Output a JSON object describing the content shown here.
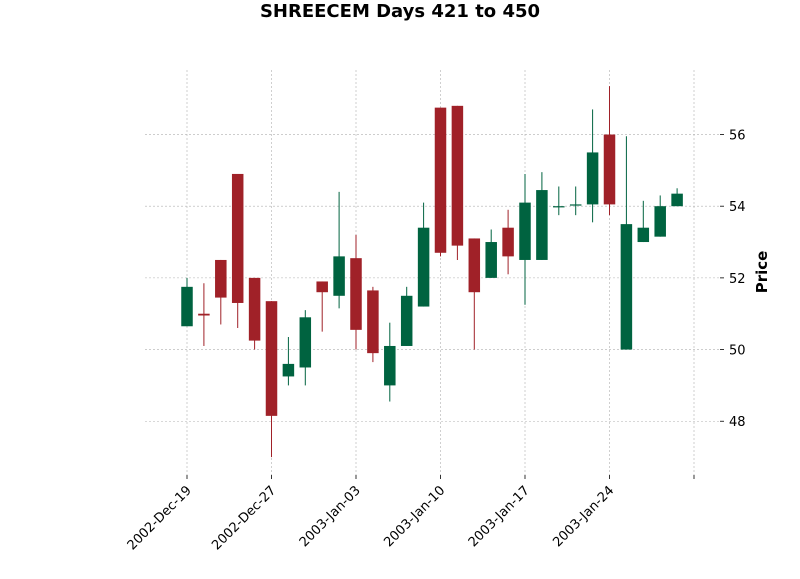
{
  "chart_data": {
    "type": "candlestick",
    "title": "SHREECEM Days 421 to 450",
    "ylabel": "Price",
    "xlabel": "",
    "ylim": [
      46.5,
      57.8
    ],
    "yticks": [
      48,
      50,
      52,
      54,
      56
    ],
    "grid": true,
    "colors": {
      "up": "#006340",
      "down": "#a02128",
      "grid": "#b0b0b0"
    },
    "xtick_labels": [
      {
        "label": "2002-Dec-19",
        "index": 0
      },
      {
        "label": "2002-Dec-27",
        "index": 5
      },
      {
        "label": "2003-Jan-03",
        "index": 10
      },
      {
        "label": "2003-Jan-10",
        "index": 15
      },
      {
        "label": "2003-Jan-17",
        "index": 20
      },
      {
        "label": "2003-Jan-24",
        "index": 25
      },
      {
        "label": "",
        "index": 30
      }
    ],
    "candles": [
      {
        "open": 50.65,
        "high": 52.0,
        "low": 50.65,
        "close": 51.75
      },
      {
        "open": 51.0,
        "high": 51.85,
        "low": 50.1,
        "close": 50.95
      },
      {
        "open": 52.5,
        "high": 52.5,
        "low": 50.7,
        "close": 51.45
      },
      {
        "open": 54.9,
        "high": 54.9,
        "low": 50.6,
        "close": 51.3
      },
      {
        "open": 52.0,
        "high": 52.0,
        "low": 50.0,
        "close": 50.25
      },
      {
        "open": 51.35,
        "high": 51.35,
        "low": 47.0,
        "close": 48.15
      },
      {
        "open": 49.25,
        "high": 50.35,
        "low": 49.0,
        "close": 49.6
      },
      {
        "open": 49.5,
        "high": 51.1,
        "low": 49.0,
        "close": 50.9
      },
      {
        "open": 51.9,
        "high": 51.9,
        "low": 50.5,
        "close": 51.6
      },
      {
        "open": 51.5,
        "high": 54.4,
        "low": 51.15,
        "close": 52.6
      },
      {
        "open": 52.55,
        "high": 53.2,
        "low": 50.0,
        "close": 50.55
      },
      {
        "open": 51.65,
        "high": 51.75,
        "low": 49.65,
        "close": 49.9
      },
      {
        "open": 49.0,
        "high": 50.75,
        "low": 48.55,
        "close": 50.1
      },
      {
        "open": 50.1,
        "high": 51.75,
        "low": 50.1,
        "close": 51.5
      },
      {
        "open": 51.2,
        "high": 54.1,
        "low": 51.2,
        "close": 53.4
      },
      {
        "open": 56.75,
        "high": 56.75,
        "low": 52.6,
        "close": 52.7
      },
      {
        "open": 56.8,
        "high": 56.8,
        "low": 52.5,
        "close": 52.9
      },
      {
        "open": 53.1,
        "high": 53.1,
        "low": 50.0,
        "close": 51.6
      },
      {
        "open": 52.0,
        "high": 53.35,
        "low": 52.0,
        "close": 53.0
      },
      {
        "open": 53.4,
        "high": 53.9,
        "low": 52.1,
        "close": 52.6
      },
      {
        "open": 52.5,
        "high": 54.9,
        "low": 51.25,
        "close": 54.1
      },
      {
        "open": 52.5,
        "high": 54.95,
        "low": 52.5,
        "close": 54.45
      },
      {
        "open": 54.0,
        "high": 54.55,
        "low": 53.75,
        "close": 54.0
      },
      {
        "open": 54.05,
        "high": 54.55,
        "low": 53.75,
        "close": 54.05
      },
      {
        "open": 54.05,
        "high": 56.7,
        "low": 53.55,
        "close": 55.5
      },
      {
        "open": 56.0,
        "high": 57.35,
        "low": 53.75,
        "close": 54.05
      },
      {
        "open": 50.0,
        "high": 55.95,
        "low": 50.0,
        "close": 53.5
      },
      {
        "open": 53.0,
        "high": 54.15,
        "low": 53.0,
        "close": 53.4
      },
      {
        "open": 53.15,
        "high": 54.3,
        "low": 53.15,
        "close": 54.0
      },
      {
        "open": 54.0,
        "high": 54.5,
        "low": 54.0,
        "close": 54.35
      }
    ]
  }
}
